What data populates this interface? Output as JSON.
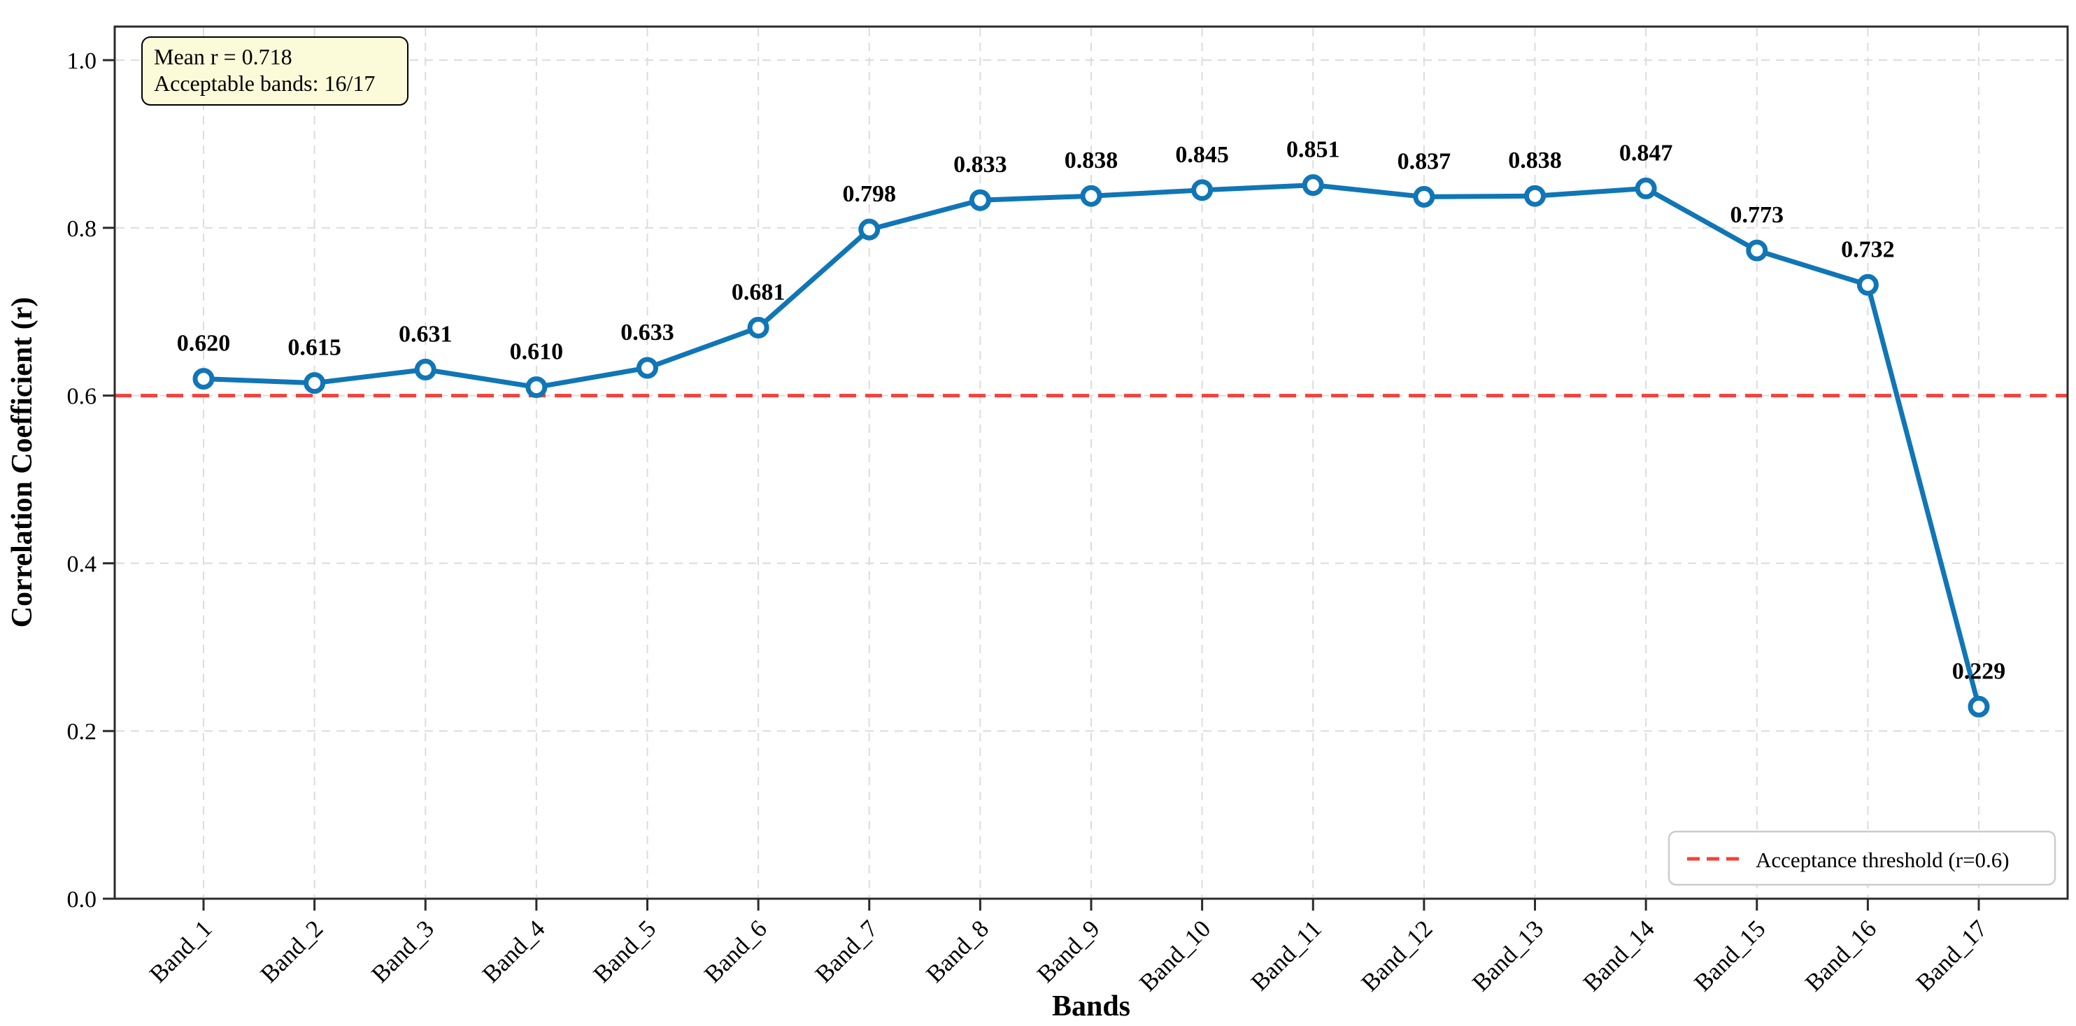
{
  "figure": {
    "background": "#ffffff"
  },
  "chart_data": {
    "type": "line",
    "title": "",
    "xlabel": "Bands",
    "ylabel": "Correlation Coefficient (r)",
    "categories": [
      "Band_1",
      "Band_2",
      "Band_3",
      "Band_4",
      "Band_5",
      "Band_6",
      "Band_7",
      "Band_8",
      "Band_9",
      "Band_10",
      "Band_11",
      "Band_12",
      "Band_13",
      "Band_14",
      "Band_15",
      "Band_16",
      "Band_17"
    ],
    "values": [
      0.62,
      0.615,
      0.631,
      0.61,
      0.633,
      0.681,
      0.798,
      0.833,
      0.838,
      0.845,
      0.851,
      0.837,
      0.838,
      0.847,
      0.773,
      0.732,
      0.229
    ],
    "value_labels": [
      "0.620",
      "0.615",
      "0.631",
      "0.610",
      "0.633",
      "0.681",
      "0.798",
      "0.833",
      "0.838",
      "0.845",
      "0.851",
      "0.837",
      "0.838",
      "0.847",
      "0.773",
      "0.732",
      "0.229"
    ],
    "y_ticks": [
      "0.0",
      "0.2",
      "0.4",
      "0.6",
      "0.8",
      "1.0"
    ],
    "ylim": [
      0,
      1.04
    ],
    "grid": true,
    "line_color": "#1076b6",
    "marker_fill": "#ffffff",
    "threshold": {
      "value": 0.6,
      "label": "Acceptance threshold (r=0.6)",
      "color": "#f6403a"
    },
    "legend_position": "lower right",
    "annotation": {
      "lines": [
        "Mean r = 0.718",
        "Acceptable bands: 16/17"
      ],
      "bg_color": "#fbfad9"
    }
  }
}
